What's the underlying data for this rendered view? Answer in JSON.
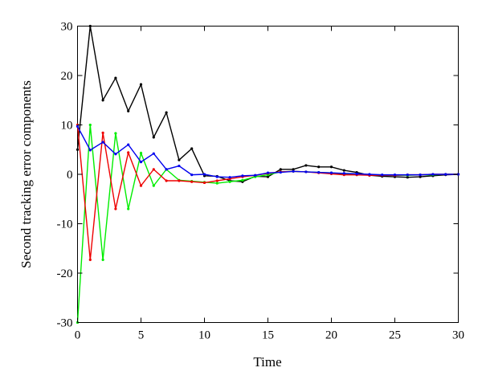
{
  "chart_data": {
    "type": "line",
    "xlabel": "Time",
    "ylabel": "Second tracking error components",
    "xlim": [
      0,
      30
    ],
    "ylim": [
      -30,
      30
    ],
    "xticks": [
      0,
      5,
      10,
      15,
      20,
      25,
      30
    ],
    "yticks": [
      -30,
      -20,
      -10,
      0,
      10,
      20,
      30
    ],
    "grid": false,
    "series": [
      {
        "color": "#000000",
        "x": [
          0,
          1,
          2,
          3,
          4,
          5,
          6,
          7,
          8,
          9,
          10,
          11,
          12,
          13,
          14,
          15,
          16,
          17,
          18,
          19,
          20,
          21,
          22,
          23,
          24,
          25,
          26,
          27,
          28,
          29,
          30
        ],
        "y": [
          5,
          30,
          15,
          19.5,
          12.8,
          18.2,
          7.5,
          12.5,
          2.9,
          5.2,
          -0.3,
          -0.4,
          -1.3,
          -1.5,
          -0.4,
          -0.5,
          1,
          1,
          1.8,
          1.5,
          1.5,
          0.8,
          0.4,
          -0.2,
          -0.4,
          -0.5,
          -0.6,
          -0.5,
          -0.3,
          -0.1,
          0
        ]
      },
      {
        "color": "#00ee00",
        "x": [
          0,
          1,
          2,
          3,
          4,
          5,
          6,
          7,
          8,
          9,
          10,
          11,
          12,
          13,
          14,
          15,
          16,
          17,
          18,
          19,
          20,
          21,
          22,
          23,
          24,
          25,
          26,
          27,
          28,
          29,
          30
        ],
        "y": [
          -30,
          10,
          -17.3,
          8.3,
          -7,
          4.3,
          -2.3,
          1,
          -1.2,
          -1.4,
          -1.6,
          -1.8,
          -1.5,
          -1.2,
          -0.5,
          -0.1,
          0.5,
          0.6,
          0.5,
          0.4,
          0.3,
          0.1,
          -0.1,
          -0.1,
          -0.2,
          -0.2,
          -0.2,
          -0.1,
          -0.1,
          0,
          0
        ]
      },
      {
        "color": "#ee0000",
        "x": [
          0,
          1,
          2,
          3,
          4,
          5,
          6,
          7,
          8,
          9,
          10,
          11,
          12,
          13,
          14,
          15,
          16,
          17,
          18,
          19,
          20,
          21,
          22,
          23,
          24,
          25,
          26,
          27,
          28,
          29,
          30
        ],
        "y": [
          10,
          -17.3,
          8.4,
          -7,
          4.4,
          -2.3,
          1,
          -1.3,
          -1.3,
          -1.5,
          -1.7,
          -1.3,
          -0.9,
          -0.5,
          -0.2,
          0.2,
          0.5,
          0.6,
          0.5,
          0.3,
          0.1,
          -0.1,
          -0.1,
          -0.2,
          -0.2,
          -0.2,
          -0.1,
          -0.1,
          0,
          0,
          0
        ]
      },
      {
        "color": "#0000ee",
        "x": [
          0,
          1,
          2,
          3,
          4,
          5,
          6,
          7,
          8,
          9,
          10,
          11,
          12,
          13,
          14,
          15,
          16,
          17,
          18,
          19,
          20,
          21,
          22,
          23,
          24,
          25,
          26,
          27,
          28,
          29,
          30
        ],
        "y": [
          9.7,
          4.9,
          6.5,
          4.1,
          6,
          2.5,
          4.2,
          1,
          1.7,
          -0.1,
          0,
          -0.5,
          -0.6,
          -0.3,
          -0.2,
          0.3,
          0.4,
          0.6,
          0.5,
          0.4,
          0.3,
          0.2,
          0.1,
          0,
          -0.1,
          -0.1,
          -0.1,
          -0.1,
          0,
          0,
          0
        ]
      }
    ]
  }
}
